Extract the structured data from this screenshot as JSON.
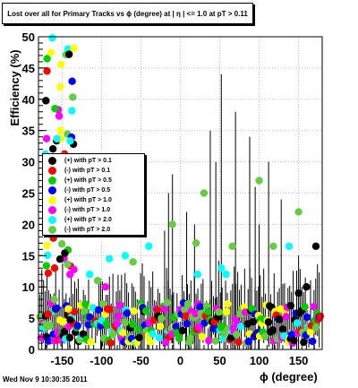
{
  "chart_data": {
    "type": "scatter",
    "title": "Lost over all for Primary Tracks vs ϕ (degree) at | η | <= 1.0 at pT > 0.11",
    "xlabel": "ϕ (degree)",
    "ylabel": "Efficiency (%)",
    "xlim": [
      -180,
      180
    ],
    "ylim": [
      0,
      50
    ],
    "xticks": [
      "-150",
      "-100",
      "-50",
      "0",
      "50",
      "100",
      "150"
    ],
    "xtick_values": [
      -150,
      -100,
      -50,
      0,
      50,
      100,
      150
    ],
    "yticks": [
      "0",
      "5",
      "10",
      "15",
      "20",
      "25",
      "30",
      "35",
      "40",
      "45",
      "50"
    ],
    "ytick_values": [
      0,
      5,
      10,
      15,
      20,
      25,
      30,
      35,
      40,
      45,
      50
    ],
    "grid": true,
    "legend_position": "middle-left",
    "series": [
      {
        "name": "(+) with pT > 0.1",
        "color": "#000000"
      },
      {
        "name": "(-) with pT > 0.1",
        "color": "#ff0000"
      },
      {
        "name": "(+) with pT > 0.5",
        "color": "#00cc00"
      },
      {
        "name": "(-) with pT > 0.5",
        "color": "#0000ff"
      },
      {
        "name": "(+) with pT > 1.0",
        "color": "#ffff00"
      },
      {
        "name": "(-) with pT > 1.0",
        "color": "#ff00ff"
      },
      {
        "name": "(+) with pT > 2.0",
        "color": "#00ffff"
      },
      {
        "name": "(-) with pT > 2.0",
        "color": "#66cc44"
      }
    ]
  },
  "footer": {
    "timestamp": "Wed Nov  9 10:30:35 2011"
  }
}
